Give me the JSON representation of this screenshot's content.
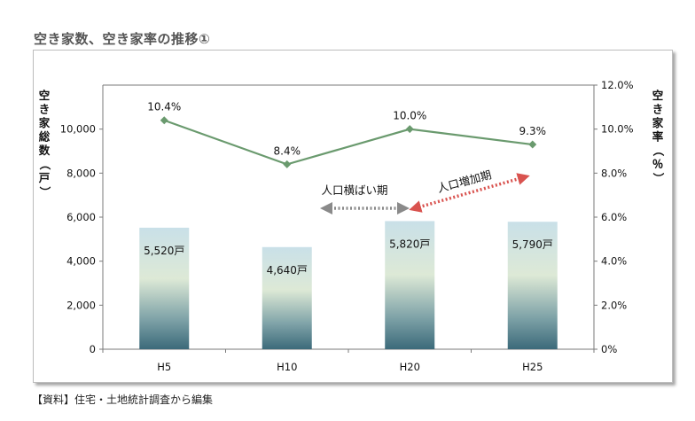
{
  "page": {
    "title": "空き家数、空き家率の推移①",
    "source": "【資料】住宅・土地統計調査から編集"
  },
  "chart_data": {
    "type": "bar",
    "categories": [
      "H5",
      "H10",
      "H20",
      "H25"
    ],
    "series": [
      {
        "axis": "left",
        "type": "bar",
        "values": [
          5520,
          4640,
          5820,
          5790
        ],
        "labels": [
          "5,520戸",
          "4,640戸",
          "5,820戸",
          "5,790戸"
        ],
        "color_top": "#cfe4ea",
        "color_mid": "#dbe8d8",
        "color_bottom": "#3f6c7c"
      },
      {
        "axis": "right",
        "type": "line",
        "values": [
          10.4,
          8.4,
          10.0,
          9.3
        ],
        "labels": [
          "10.4%",
          "8.4%",
          "10.0%",
          "9.3%"
        ],
        "color": "#6a9a6e"
      }
    ],
    "y_left": {
      "label": "空き家総数（戸）",
      "ylim": [
        0,
        12000
      ],
      "ticks": [
        "0",
        "2,000",
        "4,000",
        "6,000",
        "8,000",
        "10,000"
      ]
    },
    "y_right": {
      "label": "空き家率（％）",
      "ylim": [
        0,
        12
      ],
      "ticks": [
        "0%",
        "2.0%",
        "4.0%",
        "6.0%",
        "8.0%",
        "10.0%",
        "12.0%"
      ]
    },
    "annotations": [
      {
        "text": "人口横ばい期",
        "color": "#8a8a8a",
        "style": "double-arrow-dotted"
      },
      {
        "text": "人口増加期",
        "color": "#d9534f",
        "style": "double-arrow-dotted"
      }
    ],
    "grid": false
  }
}
